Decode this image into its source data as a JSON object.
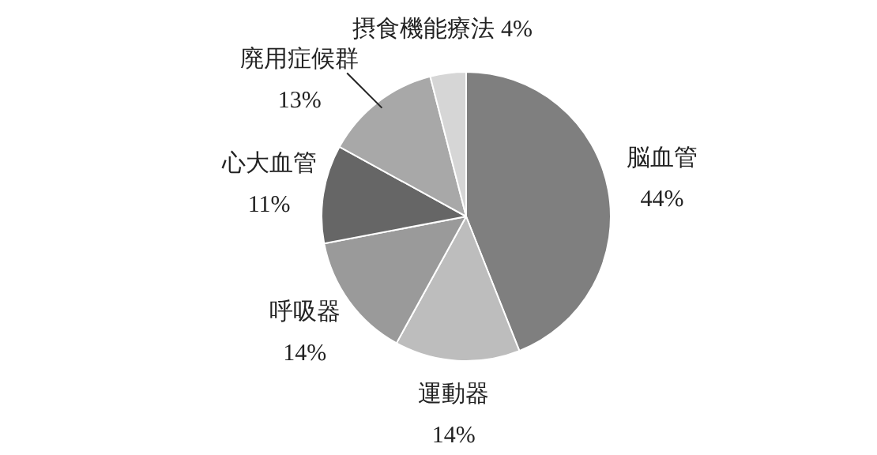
{
  "chart_data": {
    "type": "pie",
    "categories": [
      "脳血管",
      "運動器",
      "呼吸器",
      "心大血管",
      "廃用症候群",
      "摂食機能療法"
    ],
    "values": [
      44,
      14,
      14,
      11,
      13,
      4
    ],
    "value_labels": [
      "44%",
      "14%",
      "14%",
      "11%",
      "13%",
      "4%"
    ],
    "colors": [
      "#7f7f7f",
      "#bdbdbd",
      "#9a9a9a",
      "#666666",
      "#a8a8a8",
      "#d6d6d6"
    ],
    "legend": false
  }
}
